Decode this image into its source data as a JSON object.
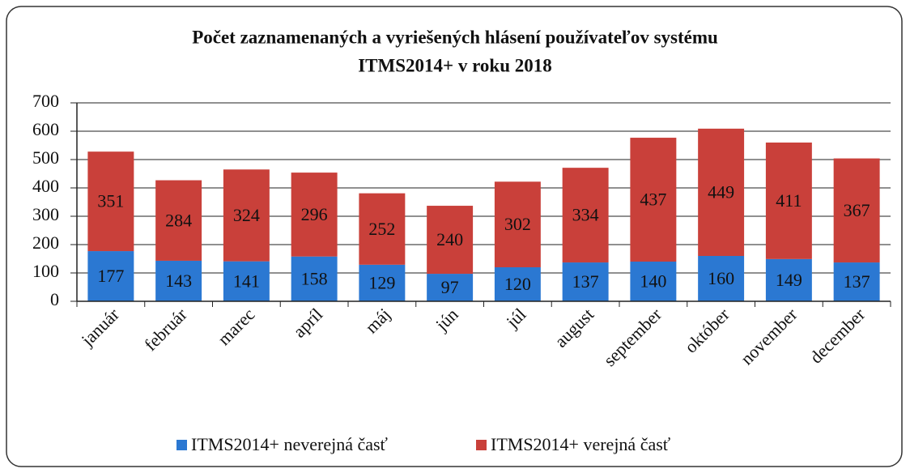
{
  "chart_data": {
    "type": "stacked_bar",
    "title": [
      "Počet zaznamenaných a vyriešených hlásení používateľov systému",
      "ITMS2014+ v roku 2018"
    ],
    "categories": [
      "január",
      "február",
      "marec",
      "apríl",
      "máj",
      "jún",
      "júl",
      "august",
      "september",
      "október",
      "november",
      "december"
    ],
    "series": [
      {
        "name": "ITMS2014+ neverejná časť",
        "color": "#2b78d2",
        "values": [
          177,
          143,
          141,
          158,
          129,
          97,
          120,
          137,
          140,
          160,
          149,
          137
        ]
      },
      {
        "name": "ITMS2014+ verejná časť",
        "color": "#c9403a",
        "values": [
          351,
          284,
          324,
          296,
          252,
          240,
          302,
          334,
          437,
          449,
          411,
          367
        ]
      }
    ],
    "ylim": [
      0,
      700
    ],
    "yticks": [
      0,
      100,
      200,
      300,
      400,
      500,
      600,
      700
    ],
    "grid": true,
    "legend": "bottom"
  }
}
